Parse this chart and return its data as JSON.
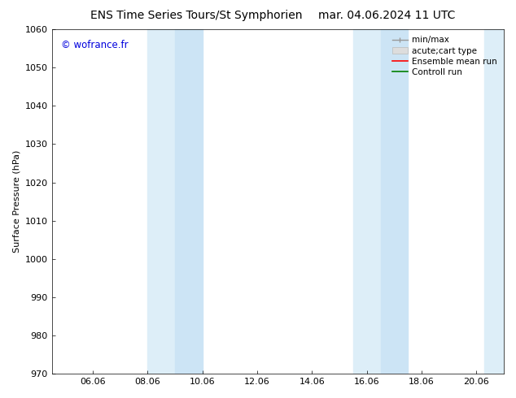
{
  "title_left": "ENS Time Series Tours/St Symphorien",
  "title_right": "mar. 04.06.2024 11 UTC",
  "ylabel": "Surface Pressure (hPa)",
  "ylim": [
    970,
    1060
  ],
  "yticks": [
    970,
    980,
    990,
    1000,
    1010,
    1020,
    1030,
    1040,
    1050,
    1060
  ],
  "xlim_start": 4.5,
  "xlim_end": 21.0,
  "xtick_labels": [
    "06.06",
    "08.06",
    "10.06",
    "12.06",
    "14.06",
    "16.06",
    "18.06",
    "20.06"
  ],
  "xtick_positions": [
    6,
    8,
    10,
    12,
    14,
    16,
    18,
    20
  ],
  "shaded_bands": [
    {
      "xmin": 8.0,
      "xmax": 9.0,
      "color": "#ddeef8"
    },
    {
      "xmin": 9.0,
      "xmax": 10.0,
      "color": "#cce4f5"
    },
    {
      "xmin": 15.5,
      "xmax": 16.5,
      "color": "#ddeef8"
    },
    {
      "xmin": 16.5,
      "xmax": 17.5,
      "color": "#cce4f5"
    },
    {
      "xmin": 20.3,
      "xmax": 21.0,
      "color": "#ddeef8"
    }
  ],
  "watermark_text": "© wofrance.fr",
  "watermark_color": "#0000dd",
  "background_color": "#ffffff",
  "plot_bg_color": "#ffffff",
  "title_fontsize": 10,
  "axis_label_fontsize": 8,
  "tick_fontsize": 8,
  "legend_fontsize": 7.5
}
